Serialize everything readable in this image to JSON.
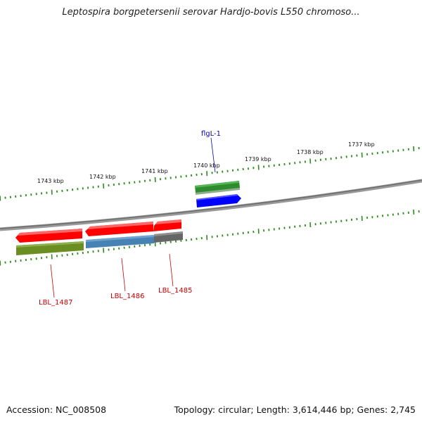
{
  "title": "Leptospira borgpetersenii serovar Hardjo-bovis L550 chromoso...",
  "footer": {
    "accession": "Accession: NC_008508",
    "summary": "Topology: circular; Length: 3,614,446 bp; Genes: 2,745"
  },
  "ruler": {
    "unit": "kbp",
    "labels": [
      "1743 kbp",
      "1742 kbp",
      "1741 kbp",
      "1740 kbp",
      "1739 kbp",
      "1738 kbp",
      "1737 kbp"
    ]
  },
  "genes": [
    {
      "name": "flgL-1",
      "label_color": "#0000aa",
      "strand": "forward"
    },
    {
      "name": "LBL_1485",
      "label_color": "#cc0000",
      "strand": "reverse"
    },
    {
      "name": "LBL_1486",
      "label_color": "#cc0000",
      "strand": "reverse"
    },
    {
      "name": "LBL_1487",
      "label_color": "#cc0000",
      "strand": "reverse"
    }
  ],
  "colors": {
    "backbone": "#8a8a8a",
    "tick": "#2e8b1e",
    "cds_reverse": "#ff0000",
    "cds_forward": "#0000ff",
    "cog_green": "#2e8b2e",
    "cog_olive": "#6b8e23",
    "cog_steel": "#4682b4",
    "cog_gray": "#666666"
  }
}
